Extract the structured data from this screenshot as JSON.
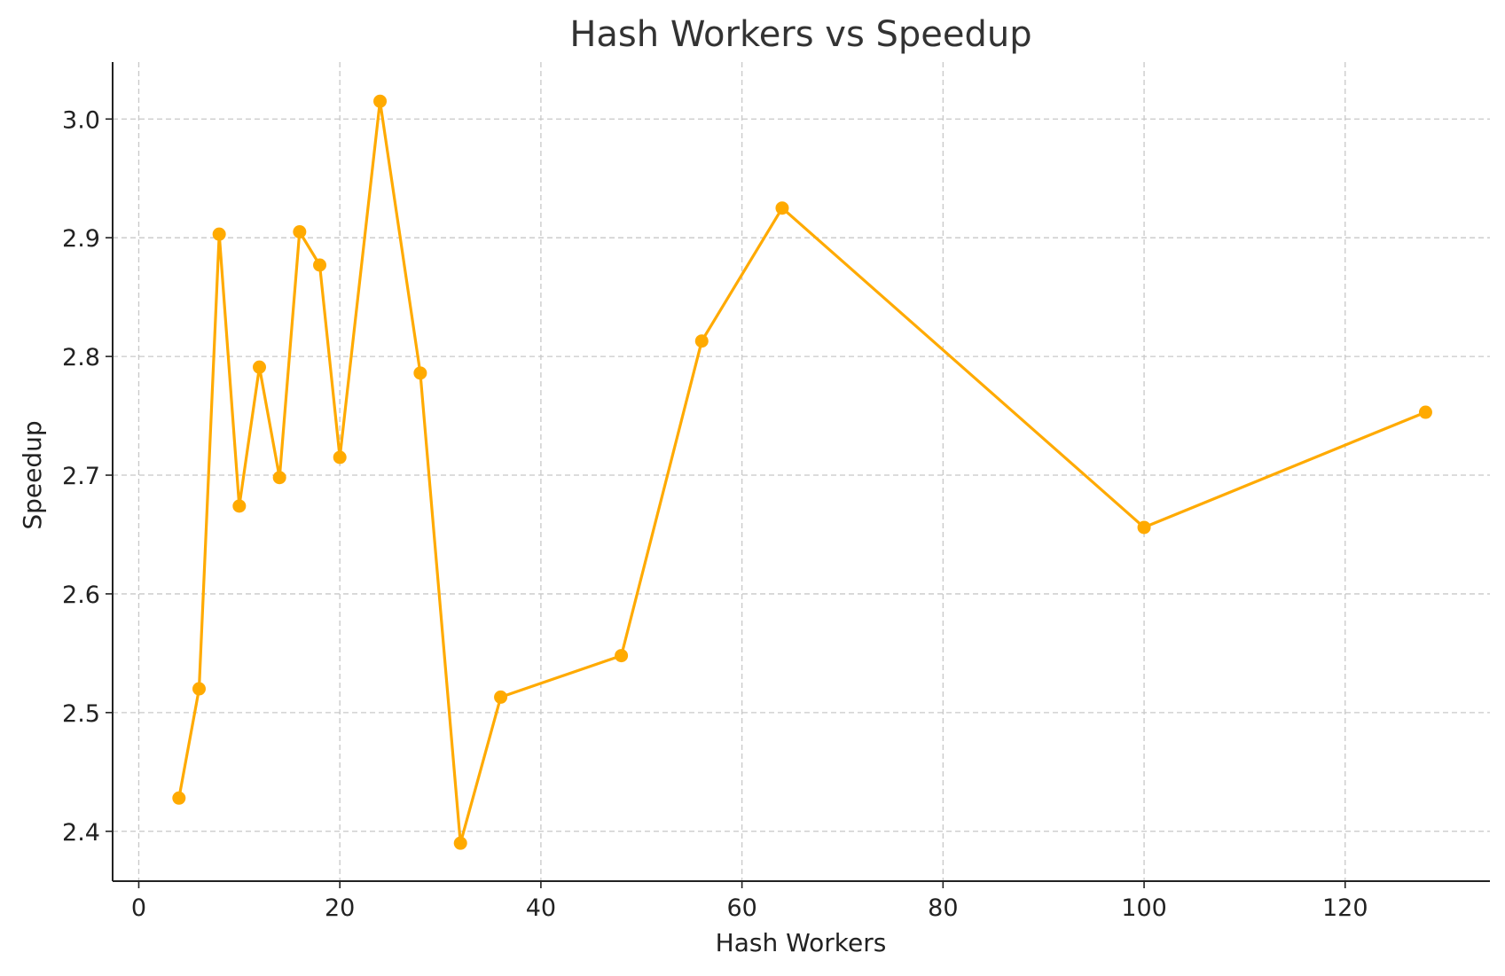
{
  "chart_data": {
    "type": "line",
    "title": "Hash Workers vs Speedup",
    "xlabel": "Hash Workers",
    "ylabel": "Speedup",
    "xlim": [
      -2.6,
      134.4
    ],
    "ylim": [
      2.358,
      3.048
    ],
    "xticks": [
      0,
      20,
      40,
      60,
      80,
      100,
      120
    ],
    "yticks": [
      2.4,
      2.5,
      2.6,
      2.7,
      2.8,
      2.9,
      3.0
    ],
    "xtick_labels": [
      "0",
      "20",
      "40",
      "60",
      "80",
      "100",
      "120"
    ],
    "ytick_labels": [
      "2.4",
      "2.5",
      "2.6",
      "2.7",
      "2.8",
      "2.9",
      "3.0"
    ],
    "grid": true,
    "color": "#FFAA00",
    "series": [
      {
        "x": [
          4,
          6,
          8,
          10,
          12,
          14,
          16,
          18,
          20,
          24,
          28,
          32,
          36,
          48,
          56,
          64,
          100,
          128
        ],
        "y": [
          2.428,
          2.52,
          2.903,
          2.674,
          2.791,
          2.698,
          2.905,
          2.877,
          2.715,
          3.015,
          2.786,
          2.39,
          2.513,
          2.548,
          2.813,
          2.925,
          2.656,
          2.753
        ]
      }
    ]
  }
}
